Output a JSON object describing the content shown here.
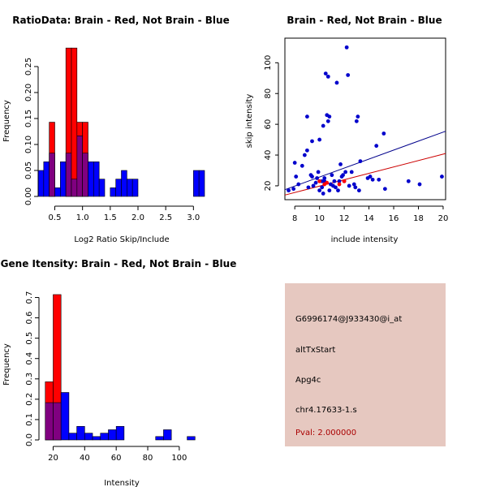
{
  "chart_data": [
    {
      "type": "bar",
      "subtype": "overlaid-histogram",
      "title": "RatioData: Brain - Red, Not Brain - Blue",
      "xlabel": "Log2 Ratio Skip/Include",
      "ylabel": "Frequency",
      "xlim": [
        0.2,
        3.2
      ],
      "ylim": [
        0,
        0.3
      ],
      "xticks": [
        0.5,
        1.0,
        1.5,
        2.0,
        2.5,
        3.0
      ],
      "xtick_labels": [
        "0.5",
        "1.0",
        "1.5",
        "2.0",
        "2.5",
        "3.0"
      ],
      "yticks": [
        0.0,
        0.05,
        0.1,
        0.15,
        0.2,
        0.25
      ],
      "ytick_labels": [
        "0.00",
        "0.05",
        "0.10",
        "0.15",
        "0.20",
        "0.25"
      ],
      "bin_width": 0.1,
      "bin_start": 0.2,
      "series": [
        {
          "name": "Brain",
          "color": "#ff0000",
          "values": [
            0,
            0,
            0.1429,
            0,
            0,
            0.2857,
            0.2857,
            0.1429,
            0.1429,
            0,
            0,
            0,
            0,
            0,
            0,
            0,
            0,
            0,
            0,
            0,
            0,
            0,
            0,
            0,
            0,
            0,
            0,
            0,
            0,
            0
          ]
        },
        {
          "name": "Not Brain",
          "color": "#0000ff",
          "values": [
            0.05,
            0.0667,
            0.0833,
            0.0167,
            0.0667,
            0.0833,
            0.0333,
            0.1167,
            0.0833,
            0.0667,
            0.0667,
            0.0333,
            0,
            0.0167,
            0.0333,
            0.05,
            0.0333,
            0.0333,
            0,
            0,
            0,
            0,
            0,
            0,
            0,
            0,
            0,
            0,
            0.05,
            0.05
          ]
        }
      ]
    },
    {
      "type": "scatter",
      "title": "Brain - Red, Not Brain - Blue",
      "xlabel": "include intensity",
      "ylabel": "skip intensity",
      "xlim": [
        7.2,
        20.2
      ],
      "ylim": [
        11,
        116
      ],
      "xticks": [
        8,
        10,
        12,
        14,
        16,
        18,
        20
      ],
      "xtick_labels": [
        "8",
        "10",
        "12",
        "14",
        "16",
        "18",
        "20"
      ],
      "yticks": [
        20,
        40,
        60,
        80,
        100
      ],
      "ytick_labels": [
        "20",
        "40",
        "60",
        "80",
        "100"
      ],
      "series": [
        {
          "name": "Not Brain",
          "color": "#0000cc",
          "points": [
            [
              7.5,
              17
            ],
            [
              7.9,
              18
            ],
            [
              8.1,
              26
            ],
            [
              8.0,
              35
            ],
            [
              8.3,
              21
            ],
            [
              8.6,
              33
            ],
            [
              8.8,
              40
            ],
            [
              9.0,
              43
            ],
            [
              9.0,
              65
            ],
            [
              9.1,
              19
            ],
            [
              9.3,
              27
            ],
            [
              9.4,
              26
            ],
            [
              9.4,
              49
            ],
            [
              9.5,
              20
            ],
            [
              9.7,
              22
            ],
            [
              9.8,
              25
            ],
            [
              9.9,
              29
            ],
            [
              10.0,
              17
            ],
            [
              10.0,
              50
            ],
            [
              10.2,
              23
            ],
            [
              10.2,
              19
            ],
            [
              10.3,
              15
            ],
            [
              10.3,
              59
            ],
            [
              10.4,
              25
            ],
            [
              10.4,
              23
            ],
            [
              10.5,
              93
            ],
            [
              10.6,
              66
            ],
            [
              10.7,
              91
            ],
            [
              10.7,
              62
            ],
            [
              10.8,
              65
            ],
            [
              10.8,
              17
            ],
            [
              10.9,
              21
            ],
            [
              11.0,
              27
            ],
            [
              11.1,
              20
            ],
            [
              11.2,
              23
            ],
            [
              11.3,
              19
            ],
            [
              11.4,
              87
            ],
            [
              11.5,
              17
            ],
            [
              11.6,
              23
            ],
            [
              11.7,
              34
            ],
            [
              11.8,
              26
            ],
            [
              11.9,
              27
            ],
            [
              12.0,
              23
            ],
            [
              12.1,
              29
            ],
            [
              12.2,
              110
            ],
            [
              12.3,
              92
            ],
            [
              12.4,
              20
            ],
            [
              12.6,
              29
            ],
            [
              12.8,
              21
            ],
            [
              12.9,
              19
            ],
            [
              13.0,
              62
            ],
            [
              13.1,
              65
            ],
            [
              13.2,
              17
            ],
            [
              13.3,
              36
            ],
            [
              13.9,
              25
            ],
            [
              14.1,
              26
            ],
            [
              14.3,
              24
            ],
            [
              14.6,
              46
            ],
            [
              14.8,
              24
            ],
            [
              15.2,
              54
            ],
            [
              15.3,
              18
            ],
            [
              17.2,
              23
            ],
            [
              18.1,
              21
            ],
            [
              19.9,
              26
            ]
          ]
        },
        {
          "name": "Brain",
          "color": "#ff0000",
          "points": [
            [
              10.0,
              23
            ],
            [
              10.4,
              21
            ],
            [
              10.6,
              22
            ],
            [
              11.6,
              21
            ],
            [
              12.0,
              23
            ]
          ]
        }
      ],
      "fit_lines": [
        {
          "name": "Not Brain fit",
          "color": "#00008b",
          "from": [
            7.2,
            17.5
          ],
          "to": [
            20.2,
            55.5
          ]
        },
        {
          "name": "Brain fit",
          "color": "#cc0000",
          "from": [
            7.2,
            14.0
          ],
          "to": [
            20.2,
            41.0
          ]
        }
      ]
    },
    {
      "type": "bar",
      "subtype": "overlaid-histogram",
      "title": "Gene Itensity: Brain - Red, Not Brain - Blue",
      "xlabel": "Intensity",
      "ylabel": "Frequency",
      "xlim": [
        11,
        115
      ],
      "ylim": [
        0,
        0.75
      ],
      "xticks": [
        20,
        40,
        60,
        80,
        100
      ],
      "xtick_labels": [
        "20",
        "40",
        "60",
        "80",
        "100"
      ],
      "yticks": [
        0.0,
        0.1,
        0.2,
        0.3,
        0.4,
        0.5,
        0.6,
        0.7
      ],
      "ytick_labels": [
        "0.0",
        "0.1",
        "0.2",
        "0.3",
        "0.4",
        "0.5",
        "0.6",
        "0.7"
      ],
      "bin_width": 5,
      "bin_start": 15,
      "series": [
        {
          "name": "Brain",
          "color": "#ff0000",
          "values": [
            0.2857,
            0.7143,
            0,
            0,
            0,
            0,
            0,
            0,
            0,
            0,
            0,
            0,
            0,
            0,
            0,
            0,
            0,
            0,
            0
          ]
        },
        {
          "name": "Not Brain",
          "color": "#0000ff",
          "values": [
            0.1833,
            0.1833,
            0.2333,
            0.0333,
            0.0667,
            0.0333,
            0.0167,
            0.0333,
            0.05,
            0.0667,
            0,
            0,
            0,
            0,
            0.0167,
            0.05,
            0,
            0,
            0.0167
          ]
        }
      ]
    }
  ],
  "info_box": {
    "probe_id": "G6996174@J933430@i_at",
    "event_type": "altTxStart",
    "gene": "Apg4c",
    "location": "chr4.17633-1.s",
    "pval": "Pval: 2.000000",
    "background": "#e6c8c0",
    "pval_color": "#aa0000"
  }
}
